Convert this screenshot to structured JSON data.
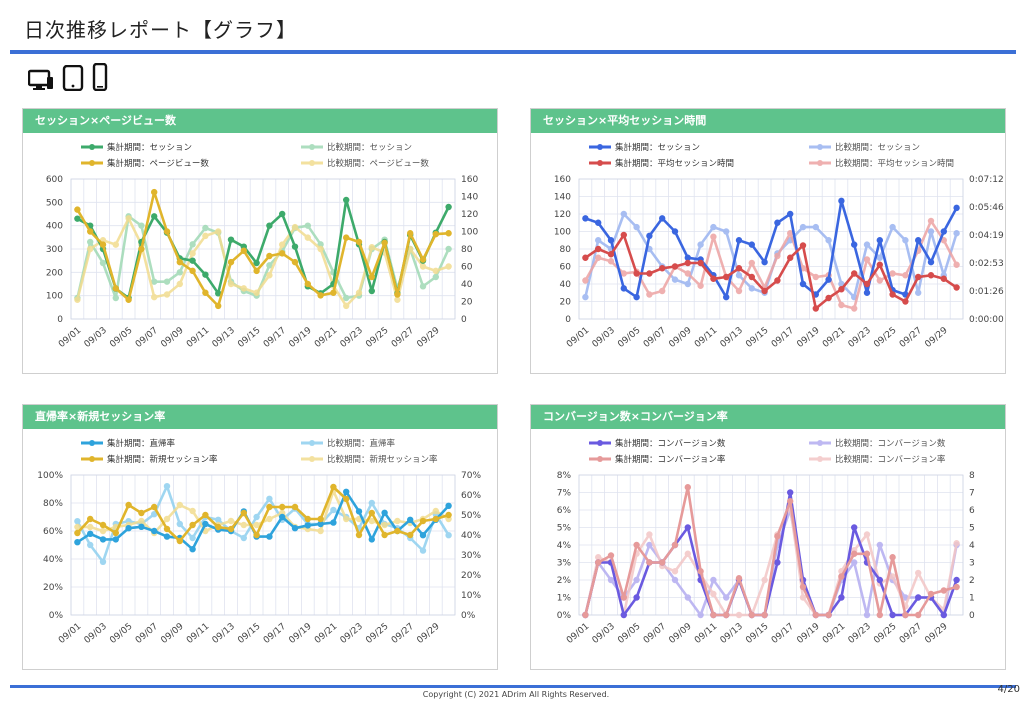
{
  "page": {
    "title": "日次推移レポート【グラフ】",
    "copyright": "Copyright (C) 2021 ADrim All Rights Reserved.",
    "page_number": "4/20"
  },
  "devices": [
    {
      "name": "desktop-icon"
    },
    {
      "name": "tablet-icon"
    },
    {
      "name": "smartphone-icon"
    }
  ],
  "colors": {
    "header": "#5ec38c",
    "accent_line": "#3b6fd6"
  },
  "chart_data": [
    {
      "type": "line",
      "title": "セッション×ページビュー数",
      "x": [
        "09/01",
        "09/02",
        "09/03",
        "09/04",
        "09/05",
        "09/06",
        "09/07",
        "09/08",
        "09/09",
        "09/10",
        "09/11",
        "09/12",
        "09/13",
        "09/14",
        "09/15",
        "09/16",
        "09/17",
        "09/18",
        "09/19",
        "09/20",
        "09/21",
        "09/22",
        "09/23",
        "09/24",
        "09/25",
        "09/26",
        "09/27",
        "09/28",
        "09/29",
        "09/30"
      ],
      "x_ticks": [
        "09/01",
        "09/03",
        "09/05",
        "09/07",
        "09/09",
        "09/11",
        "09/13",
        "09/15",
        "09/17",
        "09/19",
        "09/21",
        "09/23",
        "09/25",
        "09/27",
        "09/29"
      ],
      "yleft": {
        "min": 0,
        "max": 600,
        "ticks": [
          "0",
          "100",
          "200",
          "300",
          "400",
          "500",
          "600"
        ]
      },
      "yright": {
        "min": 0,
        "max": 160,
        "ticks": [
          "0",
          "20",
          "40",
          "60",
          "80",
          "100",
          "120",
          "140",
          "160"
        ]
      },
      "series": [
        {
          "name": "集計期間：セッション",
          "axis": "left",
          "color": "#3daa6b",
          "alpha": 1,
          "values": [
            430,
            400,
            300,
            130,
            90,
            330,
            440,
            370,
            260,
            250,
            190,
            110,
            340,
            310,
            240,
            400,
            450,
            310,
            140,
            110,
            150,
            510,
            320,
            120,
            330,
            110,
            360,
            250,
            370,
            480
          ]
        },
        {
          "name": "比較期間：セッション",
          "axis": "left",
          "color": "#9fd9b4",
          "alpha": 0.85,
          "values": [
            90,
            330,
            240,
            90,
            440,
            400,
            160,
            160,
            200,
            320,
            390,
            370,
            160,
            120,
            100,
            230,
            290,
            390,
            400,
            320,
            200,
            90,
            100,
            300,
            340,
            130,
            300,
            140,
            180,
            300
          ]
        },
        {
          "name": "集計期間：ページビュー数",
          "axis": "right",
          "color": "#e0b52c",
          "alpha": 1,
          "values": [
            125,
            100,
            85,
            35,
            22,
            80,
            145,
            100,
            65,
            55,
            30,
            15,
            65,
            78,
            55,
            72,
            75,
            65,
            40,
            27,
            30,
            93,
            88,
            48,
            87,
            28,
            98,
            68,
            97,
            98
          ]
        },
        {
          "name": "比較期間：ページビュー数",
          "axis": "right",
          "color": "#f2dc8f",
          "alpha": 0.85,
          "values": [
            22,
            80,
            90,
            85,
            115,
            85,
            25,
            28,
            40,
            75,
            95,
            100,
            40,
            35,
            30,
            50,
            85,
            105,
            93,
            80,
            38,
            15,
            30,
            82,
            76,
            22,
            80,
            60,
            55,
            60
          ]
        }
      ]
    },
    {
      "type": "line",
      "title": "セッション×平均セッション時間",
      "x": [
        "09/01",
        "09/02",
        "09/03",
        "09/04",
        "09/05",
        "09/06",
        "09/07",
        "09/08",
        "09/09",
        "09/10",
        "09/11",
        "09/12",
        "09/13",
        "09/14",
        "09/15",
        "09/16",
        "09/17",
        "09/18",
        "09/19",
        "09/20",
        "09/21",
        "09/22",
        "09/23",
        "09/24",
        "09/25",
        "09/26",
        "09/27",
        "09/28",
        "09/29",
        "09/30"
      ],
      "x_ticks": [
        "09/01",
        "09/03",
        "09/05",
        "09/07",
        "09/09",
        "09/11",
        "09/13",
        "09/15",
        "09/17",
        "09/19",
        "09/21",
        "09/23",
        "09/25",
        "09/27",
        "09/29"
      ],
      "yleft": {
        "min": 0,
        "max": 160,
        "ticks": [
          "0",
          "20",
          "40",
          "60",
          "80",
          "100",
          "120",
          "140",
          "160"
        ]
      },
      "yright": {
        "min": 0,
        "max": 8,
        "ticks": [
          "0:00:00",
          "0:01:26",
          "0:02:53",
          "0:04:19",
          "0:05:46",
          "0:07:12"
        ]
      },
      "series": [
        {
          "name": "集計期間：セッション",
          "axis": "left",
          "color": "#3a66e0",
          "alpha": 1,
          "values": [
            115,
            110,
            90,
            35,
            25,
            95,
            115,
            100,
            70,
            68,
            50,
            25,
            90,
            85,
            65,
            110,
            120,
            40,
            28,
            45,
            135,
            85,
            30,
            90,
            33,
            28,
            90,
            65,
            100,
            127
          ]
        },
        {
          "name": "比較期間：セッション",
          "axis": "left",
          "color": "#9ab3f0",
          "alpha": 0.85,
          "values": [
            25,
            90,
            80,
            120,
            105,
            80,
            60,
            45,
            40,
            85,
            105,
            100,
            50,
            35,
            30,
            75,
            90,
            105,
            105,
            90,
            40,
            25,
            85,
            70,
            105,
            90,
            30,
            100,
            50,
            98
          ]
        },
        {
          "name": "集計期間：平均セッション時間",
          "axis": "right",
          "color": "#d64c4c",
          "alpha": 1,
          "values": [
            3.5,
            4.0,
            3.7,
            4.8,
            2.6,
            2.6,
            2.9,
            3.0,
            3.2,
            3.2,
            2.3,
            2.4,
            2.9,
            2.4,
            1.6,
            2.2,
            3.5,
            4.2,
            0.6,
            1.2,
            1.7,
            2.6,
            2.0,
            3.1,
            1.4,
            1.0,
            2.4,
            2.5,
            2.3,
            1.8
          ]
        },
        {
          "name": "比較期間：平均セッション時間",
          "axis": "right",
          "color": "#eda3a3",
          "alpha": 0.85,
          "values": [
            2.2,
            3.5,
            3.3,
            2.6,
            2.7,
            1.4,
            1.6,
            3.0,
            2.6,
            1.9,
            4.7,
            2.4,
            1.6,
            3.2,
            1.8,
            3.6,
            4.9,
            2.9,
            2.4,
            2.5,
            0.8,
            0.6,
            3.4,
            2.2,
            2.6,
            2.5,
            3.9,
            5.6,
            4.5,
            3.1
          ]
        }
      ]
    },
    {
      "type": "line",
      "title": "直帰率×新規セッション率",
      "x": [
        "09/01",
        "09/02",
        "09/03",
        "09/04",
        "09/05",
        "09/06",
        "09/07",
        "09/08",
        "09/09",
        "09/10",
        "09/11",
        "09/12",
        "09/13",
        "09/14",
        "09/15",
        "09/16",
        "09/17",
        "09/18",
        "09/19",
        "09/20",
        "09/21",
        "09/22",
        "09/23",
        "09/24",
        "09/25",
        "09/26",
        "09/27",
        "09/28",
        "09/29",
        "09/30"
      ],
      "x_ticks": [
        "09/01",
        "09/03",
        "09/05",
        "09/07",
        "09/09",
        "09/11",
        "09/13",
        "09/15",
        "09/17",
        "09/19",
        "09/21",
        "09/23",
        "09/25",
        "09/27",
        "09/29"
      ],
      "yleft": {
        "min": 0,
        "max": 100,
        "ticks": [
          "0%",
          "20%",
          "40%",
          "60%",
          "80%",
          "100%"
        ]
      },
      "yright": {
        "min": 0,
        "max": 70,
        "ticks": [
          "0%",
          "10%",
          "20%",
          "30%",
          "40%",
          "50%",
          "60%",
          "70%"
        ]
      },
      "series": [
        {
          "name": "集計期間：直帰率",
          "axis": "left",
          "color": "#2ea3dc",
          "alpha": 1,
          "values": [
            52,
            58,
            54,
            54,
            62,
            63,
            60,
            56,
            55,
            47,
            65,
            61,
            60,
            74,
            56,
            56,
            70,
            62,
            64,
            65,
            66,
            88,
            74,
            54,
            73,
            60,
            68,
            57,
            68,
            78
          ]
        },
        {
          "name": "比較期間：直帰率",
          "axis": "left",
          "color": "#8fd0ef",
          "alpha": 0.85,
          "values": [
            67,
            50,
            38,
            65,
            67,
            65,
            72,
            92,
            65,
            55,
            70,
            68,
            60,
            55,
            70,
            83,
            68,
            76,
            65,
            65,
            75,
            70,
            62,
            80,
            65,
            62,
            55,
            46,
            72,
            57
          ]
        },
        {
          "name": "集計期間：新規セッション率",
          "axis": "right",
          "color": "#e0b52c",
          "alpha": 1,
          "values": [
            41,
            48,
            45,
            41,
            55,
            51,
            54,
            43,
            37,
            45,
            50,
            44,
            43,
            51,
            40,
            54,
            54,
            54,
            48,
            48,
            64,
            58,
            40,
            51,
            40,
            42,
            40,
            47,
            48,
            50
          ]
        },
        {
          "name": "比較期間：新規セッション率",
          "axis": "right",
          "color": "#f2dc8f",
          "alpha": 0.85,
          "values": [
            44,
            44,
            42,
            44,
            45,
            47,
            41,
            48,
            55,
            52,
            42,
            45,
            47,
            45,
            45,
            48,
            51,
            44,
            43,
            42,
            62,
            48,
            48,
            47,
            45,
            47,
            46,
            48,
            52,
            48
          ]
        }
      ]
    },
    {
      "type": "line",
      "title": "コンバージョン数×コンバージョン率",
      "x": [
        "09/01",
        "09/02",
        "09/03",
        "09/04",
        "09/05",
        "09/06",
        "09/07",
        "09/08",
        "09/09",
        "09/10",
        "09/11",
        "09/12",
        "09/13",
        "09/14",
        "09/15",
        "09/16",
        "09/17",
        "09/18",
        "09/19",
        "09/20",
        "09/21",
        "09/22",
        "09/23",
        "09/24",
        "09/25",
        "09/26",
        "09/27",
        "09/28",
        "09/29",
        "09/30"
      ],
      "x_ticks": [
        "09/01",
        "09/03",
        "09/05",
        "09/07",
        "09/09",
        "09/11",
        "09/13",
        "09/15",
        "09/17",
        "09/19",
        "09/21",
        "09/23",
        "09/25",
        "09/27",
        "09/29"
      ],
      "yleft": {
        "min": 0,
        "max": 8,
        "ticks": [
          "0%",
          "1%",
          "2%",
          "3%",
          "4%",
          "5%",
          "6%",
          "7%",
          "8%"
        ]
      },
      "yright": {
        "min": 0,
        "max": 8,
        "ticks": [
          "0",
          "1",
          "2",
          "3",
          "4",
          "5",
          "6",
          "7",
          "8"
        ]
      },
      "series": [
        {
          "name": "集計期間：コンバージョン数",
          "axis": "right",
          "color": "#6a5ae0",
          "alpha": 1,
          "values": [
            0,
            3,
            3,
            0,
            1,
            3,
            3,
            4,
            5,
            2,
            0,
            0,
            2,
            0,
            0,
            3,
            7,
            2,
            0,
            0,
            1,
            5,
            3,
            2,
            0,
            0,
            1,
            1,
            0,
            2
          ]
        },
        {
          "name": "比較期間：コンバージョン数",
          "axis": "right",
          "color": "#b3acf0",
          "alpha": 0.85,
          "values": [
            0,
            3,
            2,
            1,
            2,
            4,
            3,
            2,
            1,
            0,
            2,
            1,
            2,
            0,
            0,
            4,
            6,
            2,
            0,
            0,
            2,
            3,
            0,
            4,
            2,
            1,
            1,
            1,
            0,
            4
          ]
        },
        {
          "name": "集計期間：コンバージョン率",
          "axis": "left",
          "color": "#e69a9a",
          "alpha": 1,
          "values": [
            0,
            3,
            3.4,
            1,
            4,
            3,
            3,
            4,
            7.3,
            2.5,
            0,
            0,
            2.1,
            0,
            0,
            4.5,
            6.5,
            1.6,
            0,
            0,
            2.2,
            3.5,
            3.5,
            0,
            3.3,
            0,
            0,
            1.2,
            1.4,
            1.6
          ]
        },
        {
          "name": "比較期間：コンバージョン率",
          "axis": "left",
          "color": "#f3c6c6",
          "alpha": 0.85,
          "values": [
            0,
            3.3,
            3,
            0,
            3.5,
            4.6,
            2.8,
            2.5,
            3.5,
            2.3,
            1.2,
            0,
            0,
            0,
            2,
            4.6,
            6.2,
            1,
            0,
            0,
            2.5,
            3.7,
            4.6,
            1.8,
            2.2,
            0.5,
            2.4,
            1,
            0.3,
            4.1
          ]
        }
      ]
    }
  ]
}
